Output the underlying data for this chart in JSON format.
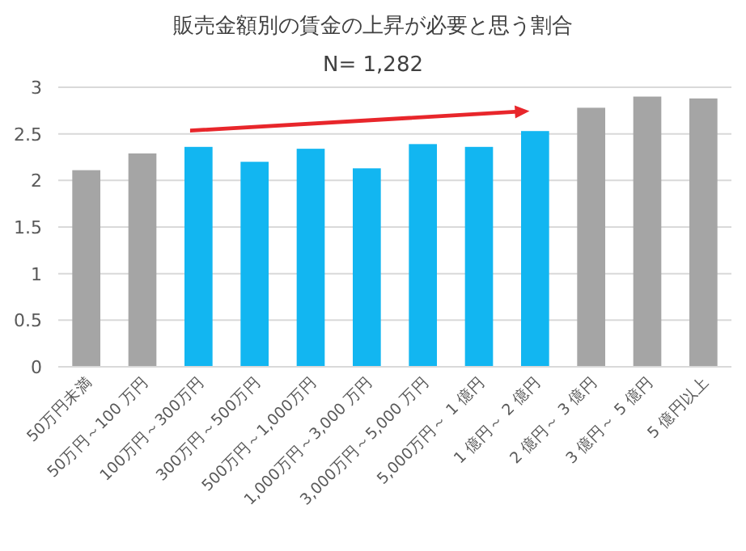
{
  "chart_data": {
    "type": "bar",
    "title": "販売金額別の賃金の上昇が必要と思う割合",
    "subtitle": "N= 1,282",
    "categories": [
      "50万円未満",
      "50万円～100 万円",
      "100万円～300万円",
      "300万円～500万円",
      "500万円～1,000万円",
      "1,000万円～3,000 万円",
      "3,000万円～5,000 万円",
      "5,000万円～ 1 億円",
      "1 億円～ 2 億円",
      "2 億円～ 3 億円",
      "3 億円～ 5 億円",
      "5 億円以上"
    ],
    "values": [
      2.11,
      2.29,
      2.36,
      2.2,
      2.34,
      2.13,
      2.39,
      2.36,
      2.53,
      2.78,
      2.9,
      2.88
    ],
    "colors": [
      "#a5a5a5",
      "#a5a5a5",
      "#12b6f1",
      "#12b6f1",
      "#12b6f1",
      "#12b6f1",
      "#12b6f1",
      "#12b6f1",
      "#12b6f1",
      "#a5a5a5",
      "#a5a5a5",
      "#a5a5a5"
    ],
    "ylim": [
      0,
      3
    ],
    "yticks": [
      0,
      0.5,
      1,
      1.5,
      2,
      2.5,
      3
    ],
    "grid": "y"
  }
}
